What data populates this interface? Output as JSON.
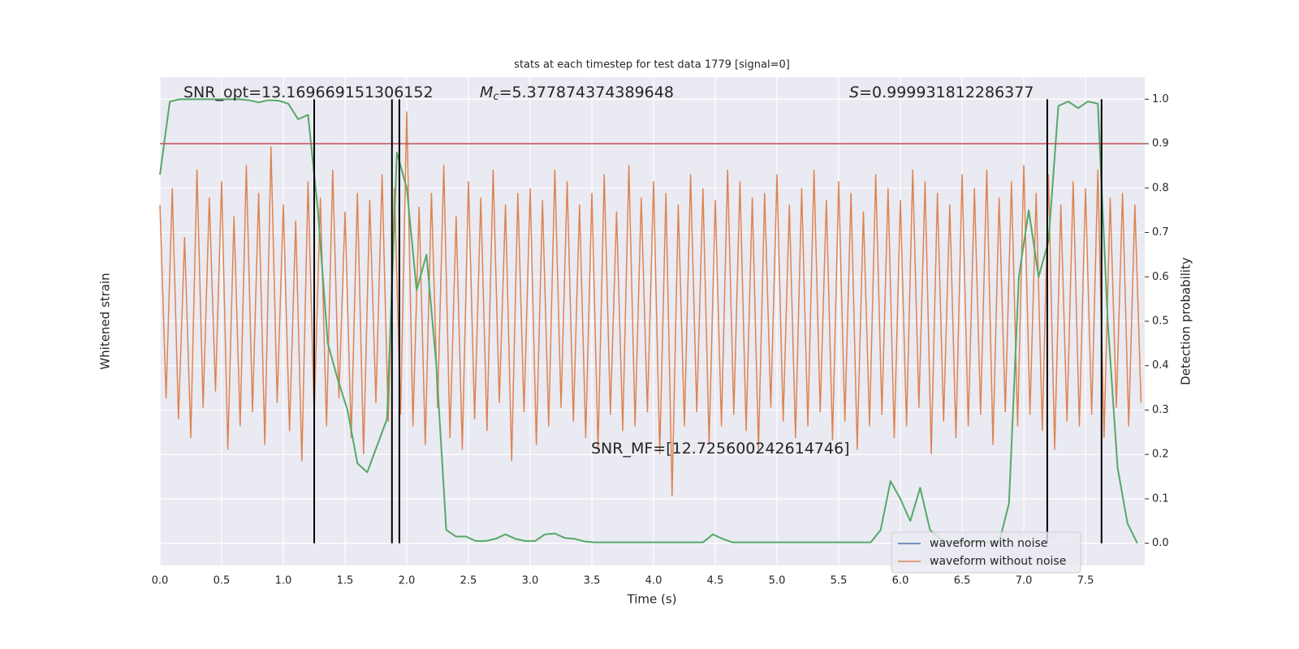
{
  "chart_data": {
    "type": "line",
    "title": "stats at each timestep for test data 1779 [signal=0]",
    "xlabel": "Time (s)",
    "ylabel": "Whitened strain",
    "y2label": "Detection probability",
    "xlim": [
      0,
      7.98
    ],
    "ylim": [
      -1.1,
      1.0
    ],
    "y2lim": [
      -0.05,
      1.05
    ],
    "xticks": [
      {
        "value": 0,
        "label": "0.0"
      },
      0.5,
      {
        "value": 1,
        "label": "1.0"
      },
      1.5,
      {
        "value": 2,
        "label": "2.0"
      },
      2.5,
      {
        "value": 3,
        "label": "3.0"
      },
      3.5,
      {
        "value": 4,
        "label": "4.0"
      },
      4.5,
      {
        "value": 5,
        "label": "5.0"
      },
      5.5,
      {
        "value": 6,
        "label": "6.0"
      },
      6.5,
      {
        "value": 7,
        "label": "7.0"
      },
      7.5
    ],
    "y2ticks": [
      {
        "value": 0,
        "label": "0.0"
      },
      0.1,
      0.2,
      0.3,
      0.4,
      0.5,
      0.6,
      0.7,
      0.8,
      0.9,
      {
        "value": 1,
        "label": "1.0"
      }
    ],
    "grid": true,
    "legend": "lower right",
    "series": [
      {
        "name": "waveform with noise",
        "color": "#4c72b0",
        "x": [],
        "values": []
      },
      {
        "name": "waveform without noise",
        "color": "#dd8452",
        "x": [
          0,
          0.05,
          0.1,
          0.15,
          0.2,
          0.25,
          0.3,
          0.35,
          0.4,
          0.45,
          0.5,
          0.55,
          0.6,
          0.65,
          0.7,
          0.75,
          0.8,
          0.85,
          0.9,
          0.95,
          1,
          1.05,
          1.1,
          1.15,
          1.2,
          1.25,
          1.3,
          1.35,
          1.4,
          1.45,
          1.5,
          1.55,
          1.6,
          1.65,
          1.7,
          1.75,
          1.8,
          1.85,
          1.9,
          1.95,
          2,
          2.05,
          2.1,
          2.15,
          2.2,
          2.25,
          2.3,
          2.35,
          2.4,
          2.45,
          2.5,
          2.55,
          2.6,
          2.65,
          2.7,
          2.75,
          2.8,
          2.85,
          2.9,
          2.95,
          3,
          3.05,
          3.1,
          3.15,
          3.2,
          3.25,
          3.3,
          3.35,
          3.4,
          3.45,
          3.5,
          3.55,
          3.6,
          3.65,
          3.7,
          3.75,
          3.8,
          3.85,
          3.9,
          3.95,
          4,
          4.05,
          4.1,
          4.15,
          4.2,
          4.25,
          4.3,
          4.35,
          4.4,
          4.45,
          4.5,
          4.55,
          4.6,
          4.65,
          4.7,
          4.75,
          4.8,
          4.85,
          4.9,
          4.95,
          5,
          5.05,
          5.1,
          5.15,
          5.2,
          5.25,
          5.3,
          5.35,
          5.4,
          5.45,
          5.5,
          5.55,
          5.6,
          5.65,
          5.7,
          5.75,
          5.8,
          5.85,
          5.9,
          5.95,
          6,
          6.05,
          6.1,
          6.15,
          6.2,
          6.25,
          6.3,
          6.35,
          6.4,
          6.45,
          6.5,
          6.55,
          6.6,
          6.65,
          6.7,
          6.75,
          6.8,
          6.85,
          6.9,
          6.95,
          7,
          7.05,
          7.1,
          7.15,
          7.2,
          7.25,
          7.3,
          7.35,
          7.4,
          7.45,
          7.5,
          7.55,
          7.6,
          7.65,
          7.7,
          7.75,
          7.8,
          7.85,
          7.9,
          7.95
        ],
        "values": [
          0.45,
          -0.38,
          0.52,
          -0.47,
          0.31,
          -0.55,
          0.6,
          -0.42,
          0.48,
          -0.35,
          0.55,
          -0.6,
          0.4,
          -0.5,
          0.62,
          -0.44,
          0.5,
          -0.58,
          0.7,
          -0.4,
          0.45,
          -0.52,
          0.38,
          -0.65,
          0.55,
          -0.45,
          0.48,
          -0.5,
          0.6,
          -0.38,
          0.42,
          -0.55,
          0.5,
          -0.62,
          0.47,
          -0.4,
          0.58,
          -0.48,
          0.52,
          -0.45,
          0.85,
          -0.5,
          0.44,
          -0.58,
          0.5,
          -0.42,
          0.62,
          -0.55,
          0.4,
          -0.6,
          0.55,
          -0.47,
          0.48,
          -0.52,
          0.6,
          -0.4,
          0.45,
          -0.65,
          0.5,
          -0.44,
          0.52,
          -0.58,
          0.47,
          -0.5,
          0.6,
          -0.42,
          0.55,
          -0.48,
          0.45,
          -0.55,
          0.5,
          -0.6,
          0.58,
          -0.45,
          0.42,
          -0.52,
          0.62,
          -0.5,
          0.48,
          -0.44,
          0.55,
          -0.62,
          0.5,
          -0.8,
          0.45,
          -0.5,
          0.58,
          -0.44,
          0.52,
          -0.58,
          0.47,
          -0.5,
          0.6,
          -0.45,
          0.55,
          -0.52,
          0.48,
          -0.6,
          0.5,
          -0.42,
          0.58,
          -0.48,
          0.45,
          -0.55,
          0.52,
          -0.5,
          0.6,
          -0.44,
          0.47,
          -0.56,
          0.55,
          -0.48,
          0.5,
          -0.6,
          0.42,
          -0.5,
          0.58,
          -0.45,
          0.52,
          -0.55,
          0.47,
          -0.5,
          0.6,
          -0.42,
          0.55,
          -0.62,
          0.5,
          -0.48,
          0.45,
          -0.55,
          0.58,
          -0.5,
          0.52,
          -0.45,
          0.6,
          -0.58,
          0.48,
          -0.44,
          0.55,
          -0.5,
          0.62,
          -0.45,
          0.5,
          -0.52,
          0.58,
          -0.6,
          0.45,
          -0.48,
          0.55,
          -0.5,
          0.52,
          -0.45,
          0.6,
          -0.55,
          0.48,
          -0.42,
          0.5,
          -0.5,
          0.45,
          -0.4
        ]
      },
      {
        "color": "#55a868",
        "axis": "y2",
        "x": [
          0,
          0.08,
          0.16,
          0.24,
          0.32,
          0.4,
          0.48,
          0.56,
          0.64,
          0.72,
          0.8,
          0.88,
          0.96,
          1.04,
          1.12,
          1.2,
          1.28,
          1.36,
          1.44,
          1.52,
          1.6,
          1.68,
          1.76,
          1.84,
          1.92,
          2,
          2.08,
          2.16,
          2.24,
          2.32,
          2.4,
          2.48,
          2.56,
          2.64,
          2.72,
          2.8,
          2.88,
          2.96,
          3.04,
          3.12,
          3.2,
          3.28,
          3.36,
          3.44,
          3.52,
          3.6,
          3.68,
          3.76,
          3.84,
          3.92,
          4,
          4.08,
          4.16,
          4.24,
          4.32,
          4.4,
          4.48,
          4.56,
          4.64,
          4.72,
          4.8,
          4.88,
          4.96,
          5.04,
          5.12,
          5.2,
          5.28,
          5.36,
          5.44,
          5.52,
          5.6,
          5.68,
          5.76,
          5.84,
          5.92,
          6,
          6.08,
          6.16,
          6.24,
          6.32,
          6.4,
          6.48,
          6.56,
          6.64,
          6.72,
          6.8,
          6.88,
          6.96,
          7.04,
          7.12,
          7.2,
          7.28,
          7.36,
          7.44,
          7.52,
          7.6,
          7.68,
          7.76,
          7.84,
          7.92
        ],
        "values": [
          0.83,
          0.995,
          1.0,
          1.0,
          1.0,
          1.0,
          1.0,
          1.0,
          1.0,
          0.998,
          0.993,
          0.998,
          0.997,
          0.99,
          0.955,
          0.965,
          0.75,
          0.45,
          0.37,
          0.3,
          0.18,
          0.16,
          0.22,
          0.28,
          0.88,
          0.8,
          0.57,
          0.65,
          0.4,
          0.03,
          0.015,
          0.015,
          0.005,
          0.005,
          0.01,
          0.02,
          0.01,
          0.005,
          0.005,
          0.02,
          0.022,
          0.012,
          0.01,
          0.004,
          0.002,
          0.002,
          0.002,
          0.002,
          0.002,
          0.002,
          0.002,
          0.002,
          0.002,
          0.002,
          0.002,
          0.002,
          0.02,
          0.01,
          0.002,
          0.002,
          0.002,
          0.002,
          0.002,
          0.002,
          0.002,
          0.002,
          0.002,
          0.002,
          0.002,
          0.002,
          0.002,
          0.002,
          0.002,
          0.03,
          0.14,
          0.1,
          0.05,
          0.125,
          0.03,
          0.01,
          0.002,
          0.002,
          0.002,
          0.002,
          0.002,
          0.002,
          0.09,
          0.6,
          0.75,
          0.6,
          0.68,
          0.985,
          0.995,
          0.98,
          0.995,
          0.99,
          0.5,
          0.17,
          0.045,
          0.0
        ]
      }
    ],
    "hline": {
      "value": 0.9,
      "axis": "y2",
      "color": "#c44e52"
    },
    "vlines": {
      "values": [
        1.25,
        1.88,
        1.94,
        7.19,
        7.63
      ],
      "color": "#000000"
    },
    "annotations": [
      {
        "text": "SNR_opt=13.169669151306152"
      },
      {
        "symbol": "M",
        "subscript": "c",
        "text": "=5.377874374389648"
      },
      {
        "symbol": "S",
        "text": "=0.999931812286377"
      },
      {
        "text": "SNR_MF=[12.725600242614746]"
      }
    ]
  }
}
